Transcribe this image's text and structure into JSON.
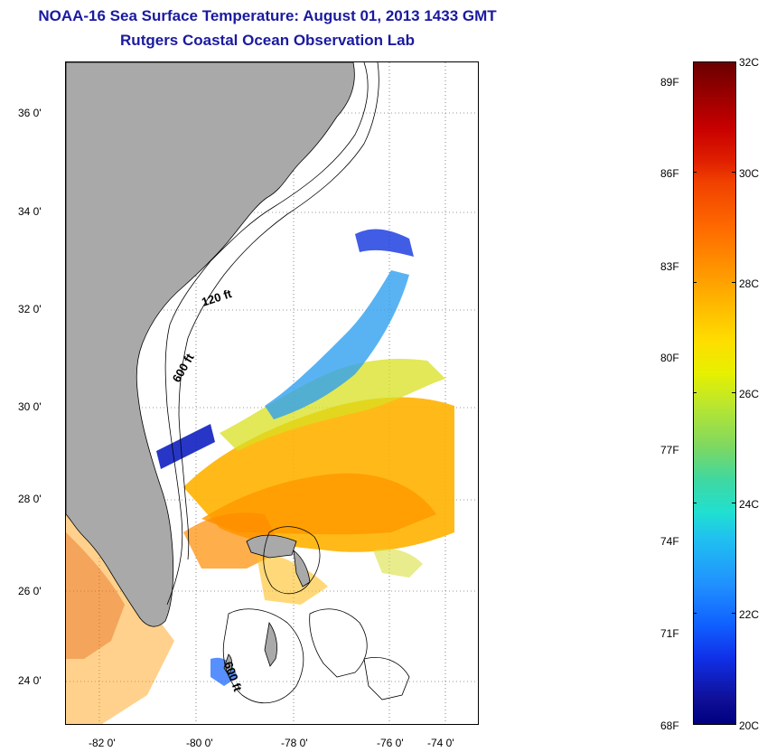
{
  "title_line1": "NOAA-16 Sea Surface Temperature:  August 01, 2013 1433 GMT",
  "title_line2": "Rutgers Coastal Ocean Observation Lab",
  "map": {
    "lat_labels": [
      "36 0'",
      "34 0'",
      "32 0'",
      "30 0'",
      "28 0'",
      "26 0'",
      "24 0'"
    ],
    "lon_labels": [
      "-82 0'",
      "-80 0'",
      "-78 0'",
      "-76 0'",
      "-74 0'"
    ],
    "contour_labels": [
      "120 ft",
      "600 ft",
      "600 ft"
    ],
    "colors": {
      "land": "#a9a9a9",
      "ocean_cloud": "#ffffff",
      "contour": "#000000"
    }
  },
  "colorbar": {
    "fahrenheit": [
      "89F",
      "86F",
      "83F",
      "80F",
      "77F",
      "74F",
      "71F",
      "68F"
    ],
    "celsius": [
      "32C",
      "30C",
      "28C",
      "26C",
      "24C",
      "22C",
      "20C"
    ],
    "range_c": [
      20,
      32
    ]
  }
}
